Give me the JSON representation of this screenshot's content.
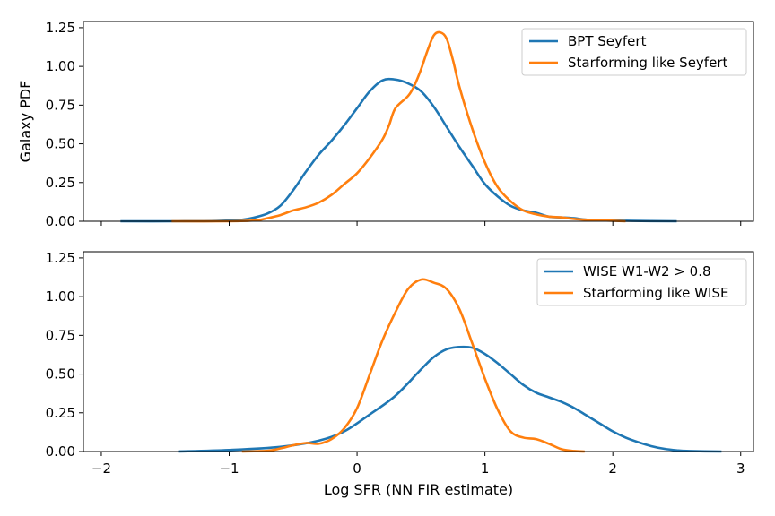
{
  "chart_data": [
    {
      "type": "line",
      "title": "",
      "xlabel": "",
      "ylabel": "Galaxy PDF",
      "xlim": [
        -2.14,
        3.1
      ],
      "ylim": [
        0,
        1.29
      ],
      "xticks": [
        -2,
        -1,
        0,
        1,
        2,
        3
      ],
      "yticks": [
        0.0,
        0.25,
        0.5,
        0.75,
        1.0,
        1.25
      ],
      "ytick_labels": [
        "0.00",
        "0.25",
        "0.50",
        "0.75",
        "1.00",
        "1.25"
      ],
      "show_xtick_labels": false,
      "legend_position": "top-right",
      "colors": [
        "#1f77b4",
        "#ff7f0e"
      ],
      "series": [
        {
          "name": "BPT Seyfert",
          "color": "#1f77b4",
          "points": [
            [
              -1.85,
              0.0
            ],
            [
              -1.4,
              0.0
            ],
            [
              -1.1,
              0.002
            ],
            [
              -0.9,
              0.01
            ],
            [
              -0.8,
              0.025
            ],
            [
              -0.7,
              0.05
            ],
            [
              -0.6,
              0.1
            ],
            [
              -0.5,
              0.2
            ],
            [
              -0.4,
              0.32
            ],
            [
              -0.3,
              0.43
            ],
            [
              -0.2,
              0.52
            ],
            [
              -0.1,
              0.62
            ],
            [
              0.0,
              0.73
            ],
            [
              0.1,
              0.84
            ],
            [
              0.2,
              0.91
            ],
            [
              0.3,
              0.915
            ],
            [
              0.4,
              0.89
            ],
            [
              0.5,
              0.84
            ],
            [
              0.6,
              0.74
            ],
            [
              0.7,
              0.61
            ],
            [
              0.8,
              0.48
            ],
            [
              0.9,
              0.36
            ],
            [
              1.0,
              0.24
            ],
            [
              1.1,
              0.16
            ],
            [
              1.2,
              0.1
            ],
            [
              1.3,
              0.07
            ],
            [
              1.4,
              0.055
            ],
            [
              1.5,
              0.03
            ],
            [
              1.6,
              0.025
            ],
            [
              1.7,
              0.02
            ],
            [
              1.8,
              0.01
            ],
            [
              2.0,
              0.005
            ],
            [
              2.3,
              0.001
            ],
            [
              2.5,
              0.0
            ]
          ]
        },
        {
          "name": "Starforming like Seyfert",
          "color": "#ff7f0e",
          "points": [
            [
              -1.45,
              0.0
            ],
            [
              -1.0,
              0.0
            ],
            [
              -0.8,
              0.005
            ],
            [
              -0.7,
              0.02
            ],
            [
              -0.6,
              0.04
            ],
            [
              -0.5,
              0.07
            ],
            [
              -0.4,
              0.09
            ],
            [
              -0.3,
              0.12
            ],
            [
              -0.2,
              0.17
            ],
            [
              -0.1,
              0.24
            ],
            [
              0.0,
              0.31
            ],
            [
              0.1,
              0.41
            ],
            [
              0.2,
              0.53
            ],
            [
              0.25,
              0.62
            ],
            [
              0.3,
              0.73
            ],
            [
              0.4,
              0.81
            ],
            [
              0.45,
              0.88
            ],
            [
              0.5,
              0.98
            ],
            [
              0.55,
              1.1
            ],
            [
              0.6,
              1.2
            ],
            [
              0.65,
              1.22
            ],
            [
              0.7,
              1.18
            ],
            [
              0.75,
              1.04
            ],
            [
              0.8,
              0.87
            ],
            [
              0.9,
              0.6
            ],
            [
              1.0,
              0.38
            ],
            [
              1.1,
              0.22
            ],
            [
              1.2,
              0.13
            ],
            [
              1.3,
              0.07
            ],
            [
              1.4,
              0.045
            ],
            [
              1.5,
              0.03
            ],
            [
              1.6,
              0.025
            ],
            [
              1.7,
              0.015
            ],
            [
              1.8,
              0.01
            ],
            [
              2.0,
              0.003
            ],
            [
              2.1,
              0.0
            ]
          ]
        }
      ]
    },
    {
      "type": "line",
      "title": "",
      "xlabel": "Log SFR (NN FIR estimate)",
      "ylabel": "",
      "xlim": [
        -2.14,
        3.1
      ],
      "ylim": [
        0,
        1.29
      ],
      "xticks": [
        -2,
        -1,
        0,
        1,
        2,
        3
      ],
      "xtick_labels": [
        "−2",
        "−1",
        "0",
        "1",
        "2",
        "3"
      ],
      "yticks": [
        0.0,
        0.25,
        0.5,
        0.75,
        1.0,
        1.25
      ],
      "ytick_labels": [
        "0.00",
        "0.25",
        "0.50",
        "0.75",
        "1.00",
        "1.25"
      ],
      "show_xtick_labels": true,
      "legend_position": "top-right",
      "colors": [
        "#1f77b4",
        "#ff7f0e"
      ],
      "series": [
        {
          "name": "WISE W1-W2 > 0.8",
          "color": "#1f77b4",
          "points": [
            [
              -1.4,
              0.0
            ],
            [
              -1.0,
              0.01
            ],
            [
              -0.6,
              0.03
            ],
            [
              -0.3,
              0.07
            ],
            [
              -0.1,
              0.13
            ],
            [
              0.1,
              0.24
            ],
            [
              0.3,
              0.36
            ],
            [
              0.5,
              0.53
            ],
            [
              0.6,
              0.61
            ],
            [
              0.7,
              0.66
            ],
            [
              0.8,
              0.675
            ],
            [
              0.9,
              0.67
            ],
            [
              1.0,
              0.63
            ],
            [
              1.1,
              0.57
            ],
            [
              1.2,
              0.5
            ],
            [
              1.3,
              0.43
            ],
            [
              1.4,
              0.38
            ],
            [
              1.5,
              0.35
            ],
            [
              1.6,
              0.32
            ],
            [
              1.7,
              0.28
            ],
            [
              1.8,
              0.23
            ],
            [
              1.9,
              0.18
            ],
            [
              2.0,
              0.13
            ],
            [
              2.1,
              0.09
            ],
            [
              2.2,
              0.06
            ],
            [
              2.3,
              0.035
            ],
            [
              2.4,
              0.018
            ],
            [
              2.5,
              0.008
            ],
            [
              2.6,
              0.003
            ],
            [
              2.85,
              0.0
            ]
          ]
        },
        {
          "name": "Starforming like WISE",
          "color": "#ff7f0e",
          "points": [
            [
              -0.9,
              0.0
            ],
            [
              -0.7,
              0.005
            ],
            [
              -0.6,
              0.02
            ],
            [
              -0.5,
              0.04
            ],
            [
              -0.4,
              0.055
            ],
            [
              -0.3,
              0.05
            ],
            [
              -0.2,
              0.08
            ],
            [
              -0.1,
              0.15
            ],
            [
              0.0,
              0.28
            ],
            [
              0.1,
              0.5
            ],
            [
              0.2,
              0.72
            ],
            [
              0.3,
              0.9
            ],
            [
              0.4,
              1.05
            ],
            [
              0.5,
              1.11
            ],
            [
              0.6,
              1.09
            ],
            [
              0.7,
              1.05
            ],
            [
              0.8,
              0.92
            ],
            [
              0.9,
              0.7
            ],
            [
              1.0,
              0.47
            ],
            [
              1.1,
              0.27
            ],
            [
              1.2,
              0.13
            ],
            [
              1.3,
              0.09
            ],
            [
              1.4,
              0.08
            ],
            [
              1.5,
              0.05
            ],
            [
              1.6,
              0.015
            ],
            [
              1.7,
              0.003
            ],
            [
              1.78,
              0.0
            ]
          ]
        }
      ]
    }
  ]
}
